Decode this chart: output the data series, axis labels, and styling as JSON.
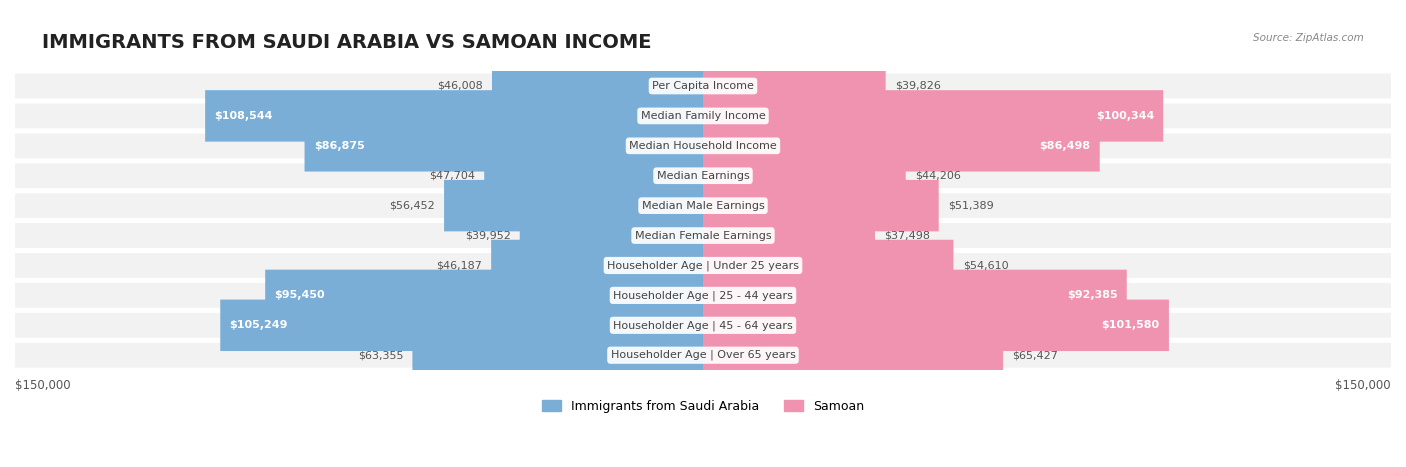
{
  "title": "IMMIGRANTS FROM SAUDI ARABIA VS SAMOAN INCOME",
  "source": "Source: ZipAtlas.com",
  "categories": [
    "Per Capita Income",
    "Median Family Income",
    "Median Household Income",
    "Median Earnings",
    "Median Male Earnings",
    "Median Female Earnings",
    "Householder Age | Under 25 years",
    "Householder Age | 25 - 44 years",
    "Householder Age | 45 - 64 years",
    "Householder Age | Over 65 years"
  ],
  "saudi_values": [
    46008,
    108544,
    86875,
    47704,
    56452,
    39952,
    46187,
    95450,
    105249,
    63355
  ],
  "samoan_values": [
    39826,
    100344,
    86498,
    44206,
    51389,
    37498,
    54610,
    92385,
    101580,
    65427
  ],
  "saudi_color_bar": "#7aaed6",
  "samoan_color_bar": "#f093b0",
  "saudi_color_label": "#5b9abd",
  "samoan_color_label": "#e87ba0",
  "row_bg_color": "#f0f0f0",
  "row_bg_alt": "#ffffff",
  "max_value": 150000,
  "legend_saudi_color": "#7aaed6",
  "legend_samoan_color": "#f093b0",
  "legend_saudi_label": "Immigrants from Saudi Arabia",
  "legend_samoan_label": "Samoan",
  "xlabel_left": "$150,000",
  "xlabel_right": "$150,000",
  "title_fontsize": 14,
  "label_fontsize": 8.5,
  "value_fontsize": 8,
  "category_fontsize": 8
}
